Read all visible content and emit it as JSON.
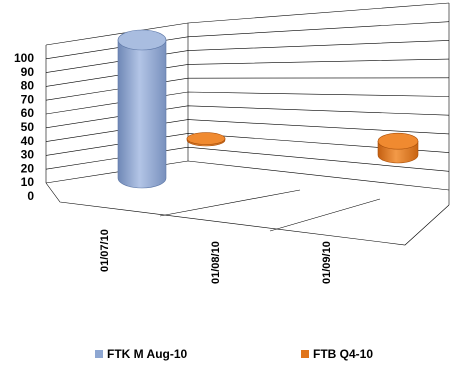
{
  "chart_data": {
    "type": "bar",
    "style": "3d-cylinder",
    "categories": [
      "01/07/10",
      "01/08/10",
      "01/09/10"
    ],
    "series": [
      {
        "name": "FTK M Aug-10",
        "values": [
          100,
          null,
          null
        ],
        "color": "#8ea7d2"
      },
      {
        "name": "FTB Q4-10",
        "values": [
          null,
          1,
          10
        ],
        "color": "#e0741a"
      }
    ],
    "ylim": [
      0,
      100
    ],
    "yticks": [
      0,
      10,
      20,
      30,
      40,
      50,
      60,
      70,
      80,
      90,
      100
    ],
    "grid": true,
    "legend": "bottom"
  }
}
